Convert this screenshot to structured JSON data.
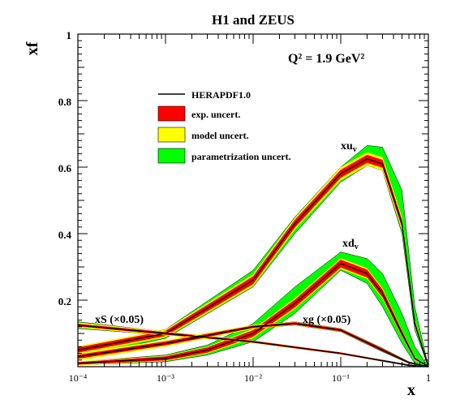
{
  "chart_data": {
    "type": "line",
    "title": "H1 and ZEUS",
    "scale_label": "Q² = 1.9 GeV²",
    "ylabel": "xf",
    "xlabel": "x",
    "xscale": "log",
    "xlim": [
      0.0001,
      1
    ],
    "ylim": [
      0,
      1
    ],
    "x_ticks": [
      "10⁻⁴",
      "10⁻³",
      "10⁻²",
      "10⁻¹",
      "1"
    ],
    "y_ticks": [
      "0.2",
      "0.4",
      "0.6",
      "0.8",
      "1"
    ],
    "grid": false,
    "legend_position": "upper-left",
    "legend": [
      {
        "label": "HERAPDF1.0",
        "kind": "line",
        "color": "#000000"
      },
      {
        "label": "exp. uncert.",
        "kind": "box",
        "color": "#ff0000"
      },
      {
        "label": "model uncert.",
        "kind": "box",
        "color": "#ffff00"
      },
      {
        "label": "parametrization uncert.",
        "kind": "box",
        "color": "#00ff00"
      }
    ],
    "series": [
      {
        "name": "xu_v",
        "label_text": "xu",
        "label_sub": "v",
        "x": [
          0.0001,
          0.001,
          0.01,
          0.03,
          0.1,
          0.2,
          0.3,
          0.5,
          0.7,
          1.0
        ],
        "y": [
          0.05,
          0.1,
          0.26,
          0.43,
          0.58,
          0.625,
          0.61,
          0.43,
          0.13,
          0.0
        ],
        "exp": [
          0.008,
          0.008,
          0.012,
          0.012,
          0.012,
          0.012,
          0.012,
          0.012,
          0.008,
          0.0
        ],
        "model": [
          0.012,
          0.012,
          0.018,
          0.018,
          0.02,
          0.02,
          0.02,
          0.02,
          0.012,
          0.0
        ],
        "param_up": [
          0.058,
          0.112,
          0.29,
          0.45,
          0.6,
          0.665,
          0.66,
          0.53,
          0.18,
          0.0
        ],
        "param_dn": [
          0.03,
          0.085,
          0.24,
          0.4,
          0.555,
          0.605,
          0.59,
          0.4,
          0.11,
          0.0
        ]
      },
      {
        "name": "xd_v",
        "label_text": "xd",
        "label_sub": "v",
        "x": [
          0.0001,
          0.001,
          0.003,
          0.01,
          0.03,
          0.1,
          0.2,
          0.3,
          0.5,
          0.7,
          1.0
        ],
        "y": [
          0.01,
          0.025,
          0.05,
          0.1,
          0.19,
          0.31,
          0.28,
          0.22,
          0.1,
          0.025,
          0.0
        ],
        "exp": [
          0.004,
          0.006,
          0.008,
          0.01,
          0.012,
          0.012,
          0.012,
          0.012,
          0.008,
          0.004,
          0.0
        ],
        "model": [
          0.006,
          0.008,
          0.01,
          0.014,
          0.016,
          0.016,
          0.016,
          0.016,
          0.01,
          0.006,
          0.0
        ],
        "param_up": [
          0.015,
          0.035,
          0.065,
          0.13,
          0.24,
          0.345,
          0.325,
          0.28,
          0.16,
          0.06,
          0.0
        ],
        "param_dn": [
          0.005,
          0.015,
          0.035,
          0.075,
          0.16,
          0.29,
          0.25,
          0.18,
          0.07,
          0.01,
          0.0
        ]
      },
      {
        "name": "xS (×0.05)",
        "label_text": "xS (×0.05)",
        "x": [
          0.0001,
          0.001,
          0.01,
          0.1,
          0.3,
          0.6,
          1.0
        ],
        "y": [
          0.125,
          0.1,
          0.075,
          0.04,
          0.018,
          0.004,
          0.0
        ],
        "exp": [
          0.004,
          0.004,
          0.003,
          0.003,
          0.002,
          0.001,
          0.0
        ],
        "model": [
          0.008,
          0.006,
          0.004,
          0.003,
          0.002,
          0.001,
          0.0
        ],
        "param_up": [
          0.135,
          0.105,
          0.078,
          0.042,
          0.02,
          0.006,
          0.0
        ],
        "param_dn": [
          0.115,
          0.095,
          0.072,
          0.038,
          0.016,
          0.003,
          0.0
        ]
      },
      {
        "name": "xg (×0.05)",
        "label_text": "xg (×0.05)",
        "x": [
          0.0001,
          0.001,
          0.01,
          0.03,
          0.1,
          0.3,
          0.6,
          1.0
        ],
        "y": [
          0.03,
          0.07,
          0.12,
          0.13,
          0.11,
          0.05,
          0.012,
          0.0
        ],
        "exp": [
          0.006,
          0.006,
          0.004,
          0.004,
          0.004,
          0.004,
          0.002,
          0.0
        ],
        "model": [
          0.012,
          0.01,
          0.006,
          0.005,
          0.005,
          0.004,
          0.002,
          0.0
        ],
        "param_up": [
          0.04,
          0.075,
          0.125,
          0.135,
          0.115,
          0.055,
          0.015,
          0.0
        ],
        "param_dn": [
          0.02,
          0.065,
          0.115,
          0.125,
          0.105,
          0.045,
          0.01,
          0.0
        ]
      }
    ]
  }
}
